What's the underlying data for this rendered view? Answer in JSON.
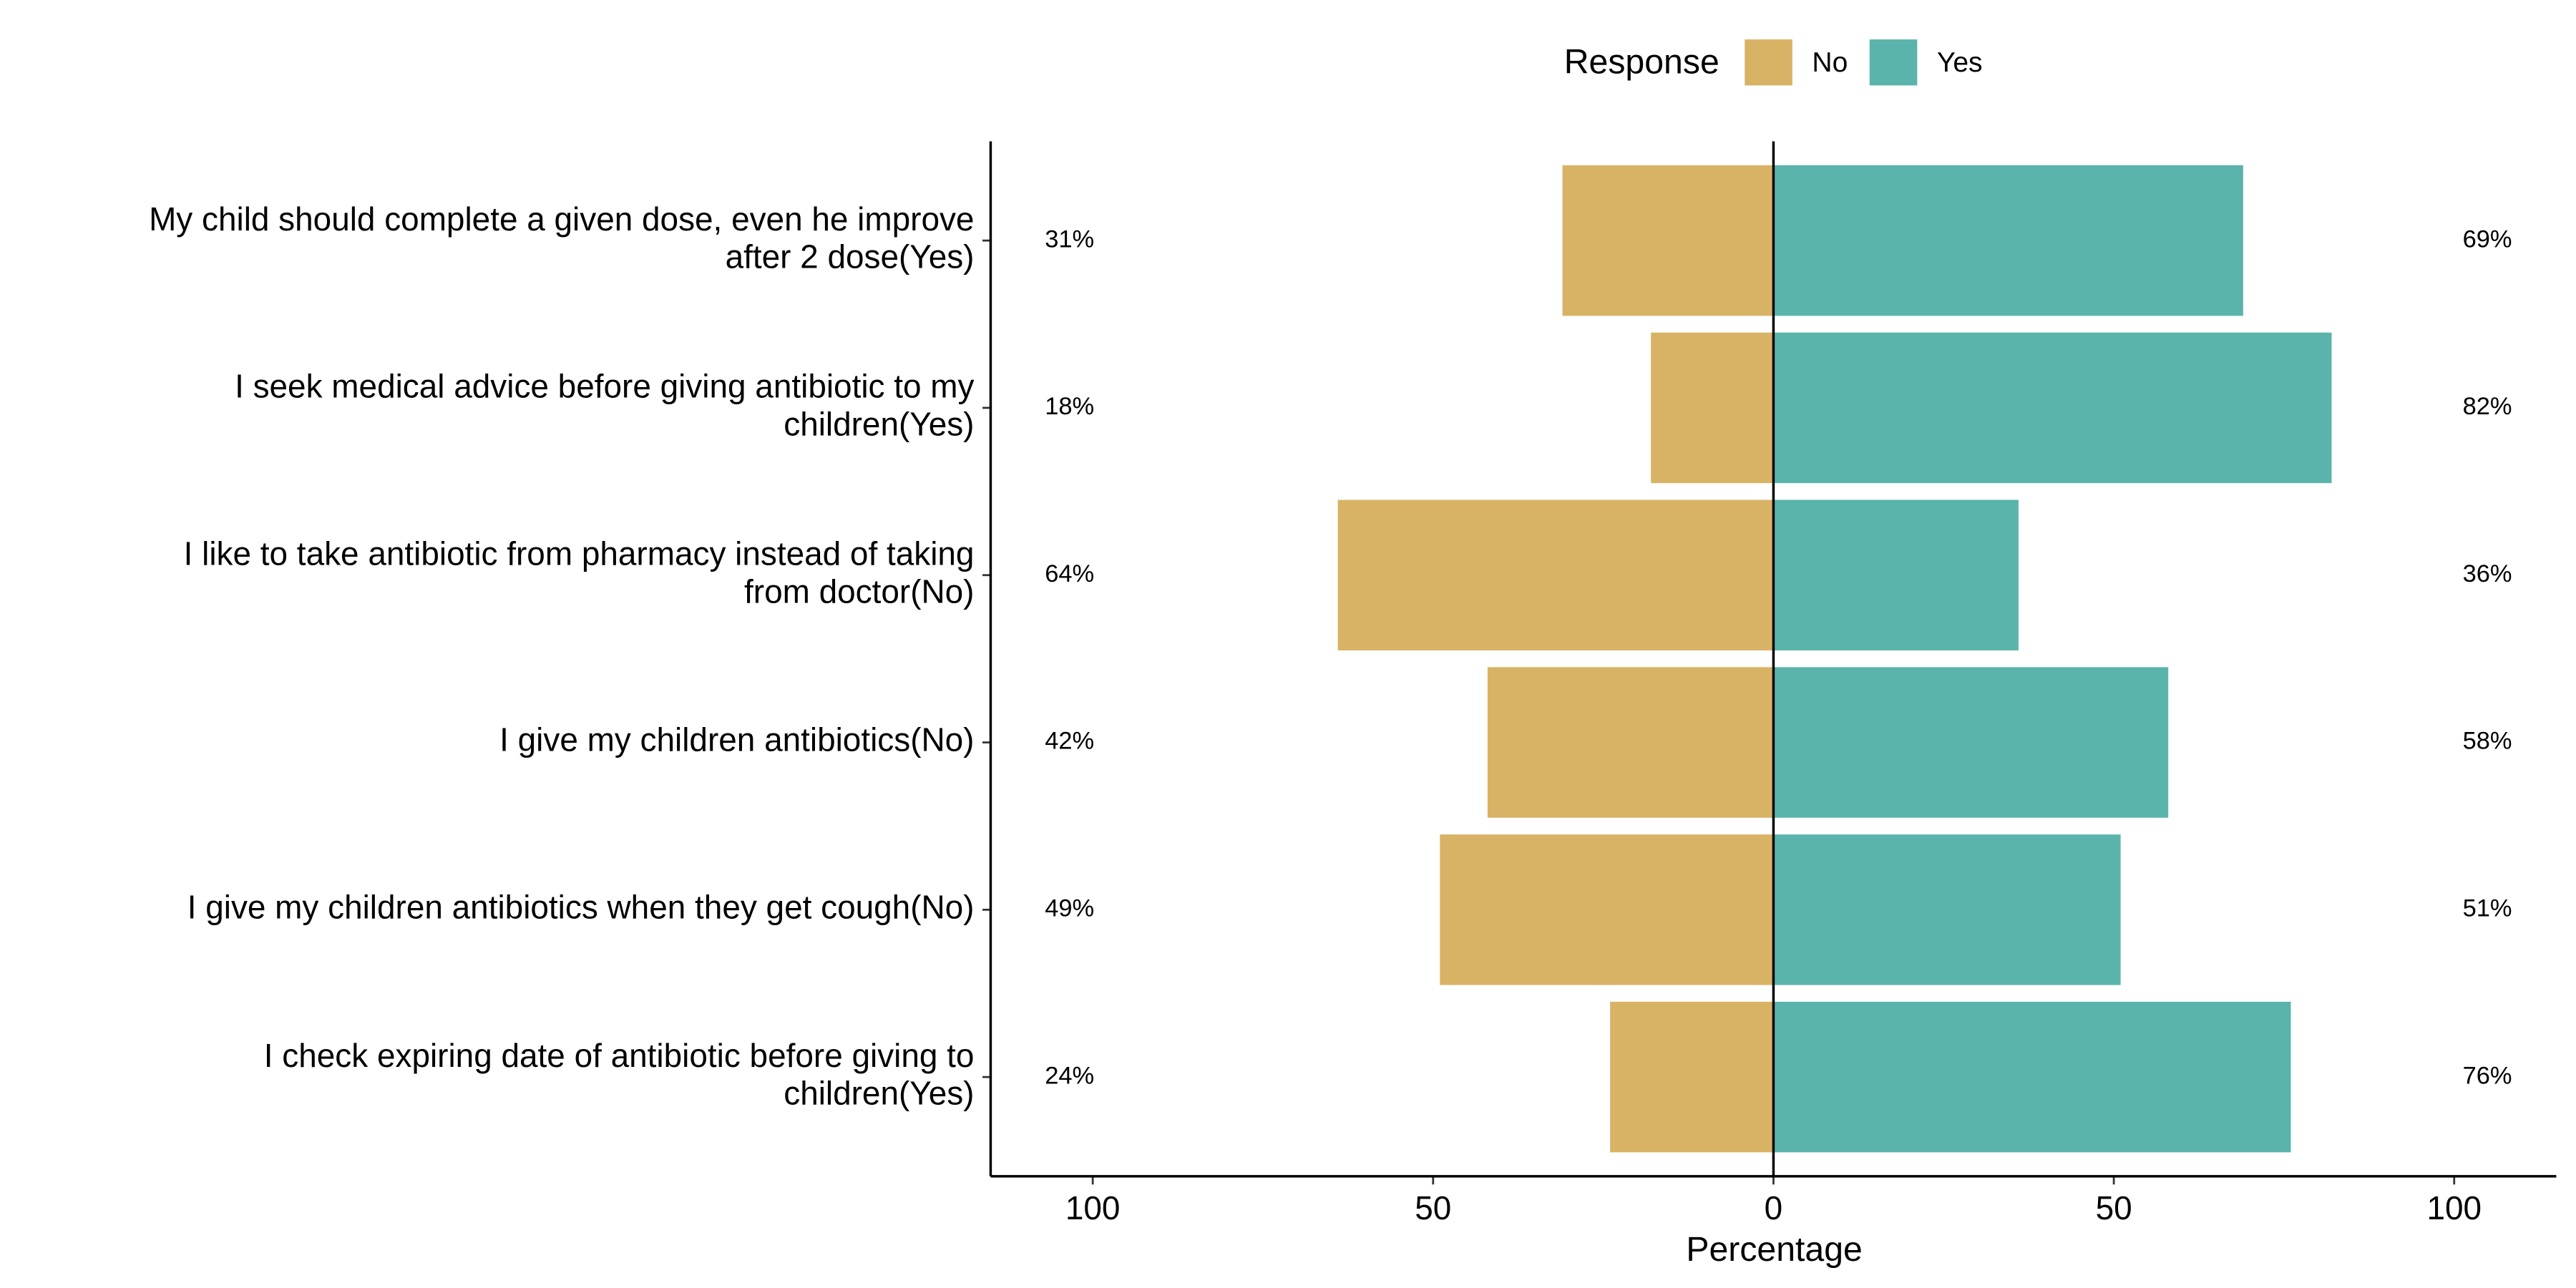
{
  "chart_data": {
    "type": "diverging_bar",
    "legend_title": "Response",
    "legend_position": "top",
    "xlabel": "Percentage",
    "categories": [
      [
        "My child should complete a given dose, even he improve",
        "after 2 dose(Yes)"
      ],
      [
        "I seek medical advice before giving antibiotic to my",
        "children(Yes)"
      ],
      [
        "I like to take antibiotic from pharmacy instead of taking",
        "from doctor(No)"
      ],
      [
        "I give my children antibiotics(No)"
      ],
      [
        "I give my children antibiotics when they get cough(No)"
      ],
      [
        "I check expiring date of antibiotic before giving to",
        "children(Yes)"
      ]
    ],
    "series": [
      {
        "name": "No",
        "color": "#d8b365",
        "values": [
          31,
          18,
          64,
          42,
          49,
          24
        ],
        "value_labels": [
          "31%",
          "18%",
          "64%",
          "42%",
          "49%",
          "24%"
        ]
      },
      {
        "name": "Yes",
        "color": "#5ab4ac",
        "values": [
          69,
          82,
          36,
          58,
          51,
          76
        ],
        "value_labels": [
          "69%",
          "82%",
          "36%",
          "58%",
          "51%",
          "76%"
        ]
      }
    ],
    "xlim": [
      -115,
      115
    ],
    "xticks": [
      {
        "value": -100,
        "label": "100"
      },
      {
        "value": -50,
        "label": "50"
      },
      0,
      50,
      100
    ]
  }
}
